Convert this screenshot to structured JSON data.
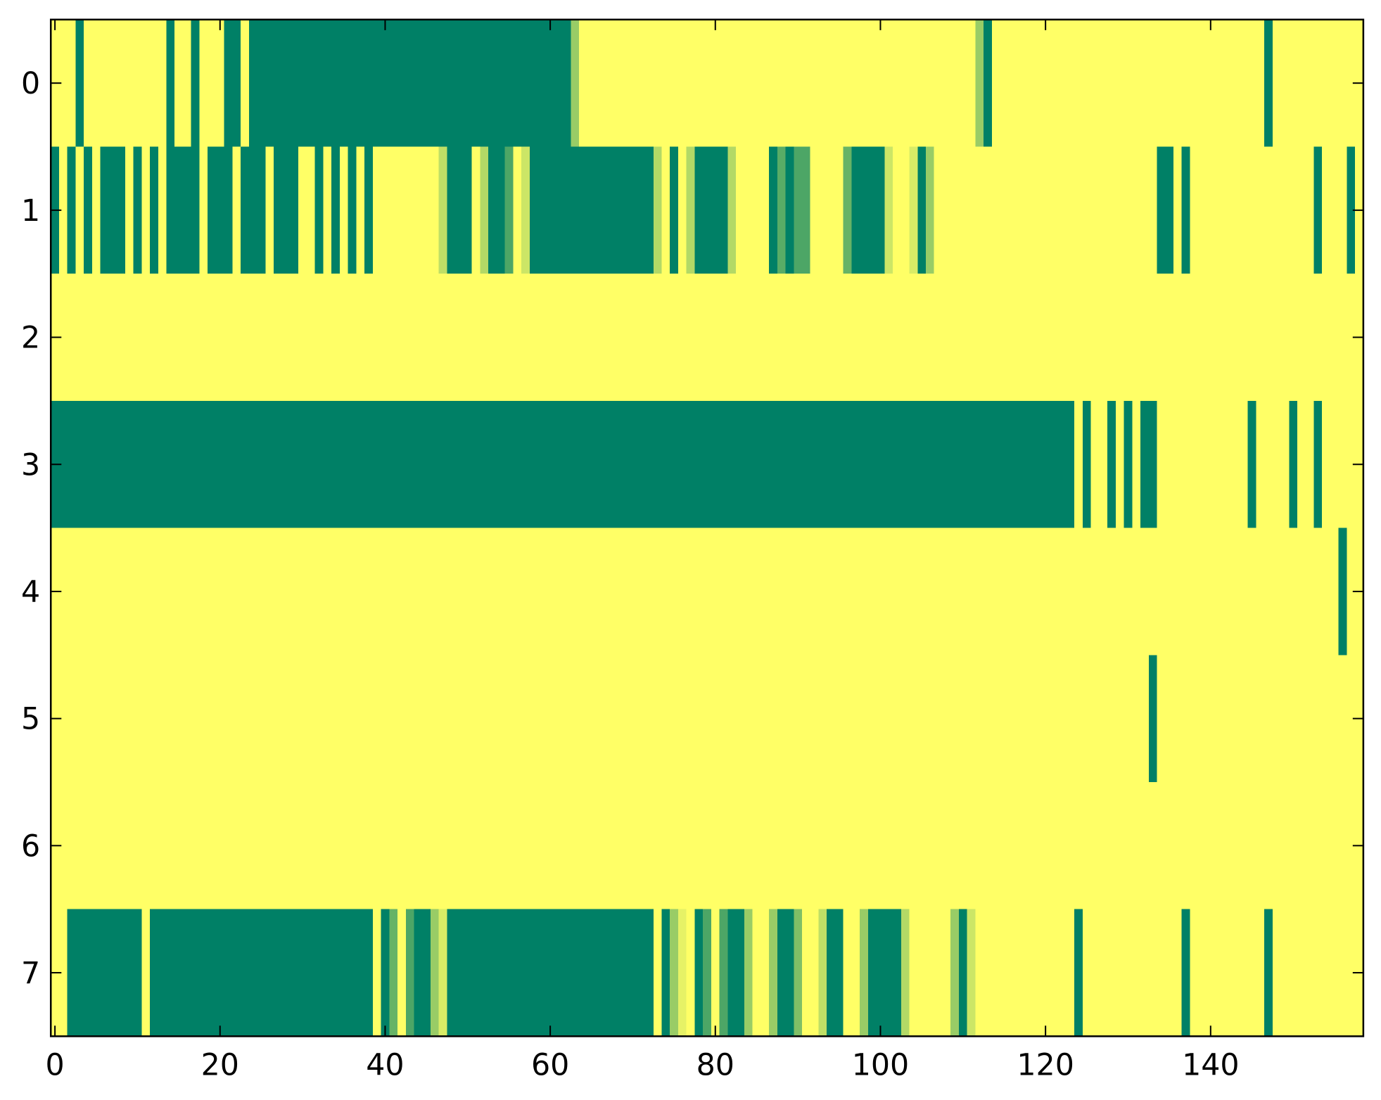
{
  "chart_data": {
    "type": "heatmap",
    "colormap": "summer",
    "xlim": [
      -0.5,
      158.5
    ],
    "ylim": [
      7.5,
      -0.5
    ],
    "xticks": [
      0,
      20,
      40,
      60,
      80,
      100,
      120,
      140
    ],
    "yticks": [
      0,
      1,
      2,
      3,
      4,
      5,
      6,
      7
    ],
    "values": [
      [
        1,
        1,
        1,
        0,
        1,
        1,
        1,
        1,
        1,
        1,
        1,
        1,
        1,
        1,
        0,
        1,
        1,
        0,
        1,
        1,
        1,
        0,
        0,
        1,
        0,
        0,
        0,
        0,
        0,
        0,
        0,
        0,
        0,
        0,
        0,
        0,
        0,
        0,
        0,
        0,
        0,
        0,
        0,
        0,
        0,
        0,
        0,
        0,
        0,
        0,
        0,
        0,
        0,
        0,
        0,
        0,
        0,
        0,
        0,
        0,
        0,
        0,
        0,
        0.6,
        1,
        1,
        1,
        1,
        1,
        1,
        1,
        1,
        1,
        1,
        1,
        1,
        1,
        1,
        1,
        1,
        1,
        1,
        1,
        1,
        1,
        1,
        1,
        1,
        1,
        1,
        1,
        1,
        1,
        1,
        1,
        1,
        1,
        1,
        1,
        1,
        1,
        1,
        1,
        1,
        1,
        1,
        1,
        1,
        1,
        1,
        1,
        1,
        0.6,
        0,
        1,
        1,
        1,
        1,
        1,
        1,
        1,
        1,
        1,
        1,
        1,
        1,
        1,
        1,
        1,
        1,
        1,
        1,
        1,
        1,
        1,
        1,
        1,
        1,
        1,
        1,
        1,
        1,
        1,
        1,
        1,
        1,
        1,
        0,
        1,
        1,
        1,
        1,
        1,
        1,
        1,
        1,
        1,
        1,
        1
      ],
      [
        0,
        1,
        0,
        1,
        0,
        1,
        0,
        0,
        0,
        1,
        0,
        1,
        0,
        1,
        0,
        0,
        0,
        0,
        1,
        0,
        0,
        0,
        1,
        0,
        0,
        0,
        1,
        0,
        0,
        0,
        1,
        1,
        0,
        1,
        0,
        1,
        0,
        1,
        0,
        1,
        1,
        1,
        1,
        1,
        1,
        1,
        1,
        0.75,
        0,
        0,
        0,
        1,
        0.7,
        0,
        0,
        0.3,
        1,
        0.8,
        0,
        0,
        0,
        0,
        0,
        0,
        0,
        0,
        0,
        0,
        0,
        0,
        0,
        0,
        0,
        0.7,
        1,
        0,
        1,
        0.7,
        0,
        0,
        0,
        0,
        0.7,
        1,
        1,
        1,
        1,
        0,
        0.35,
        0,
        0.3,
        0.3,
        1,
        1,
        1,
        1,
        0.4,
        0,
        0,
        0,
        0,
        0.8,
        1,
        1,
        0.85,
        0,
        0.6,
        1,
        1,
        1,
        1,
        1,
        1,
        1,
        1,
        1,
        1,
        1,
        1,
        1,
        1,
        1,
        1,
        1,
        1,
        1,
        1,
        1,
        1,
        1,
        1,
        1,
        1,
        1,
        0,
        0,
        1,
        0,
        1,
        1,
        1,
        1,
        1,
        1,
        1,
        1,
        1,
        1,
        1,
        1,
        1,
        1,
        1,
        0,
        1,
        1,
        1,
        0,
        1
      ],
      [
        1,
        1,
        1,
        1,
        1,
        1,
        1,
        1,
        1,
        1,
        1,
        1,
        1,
        1,
        1,
        1,
        1,
        1,
        1,
        1,
        1,
        1,
        1,
        1,
        1,
        1,
        1,
        1,
        1,
        1,
        1,
        1,
        1,
        1,
        1,
        1,
        1,
        1,
        1,
        1,
        1,
        1,
        1,
        1,
        1,
        1,
        1,
        1,
        1,
        1,
        1,
        1,
        1,
        1,
        1,
        1,
        1,
        1,
        1,
        1,
        1,
        1,
        1,
        1,
        1,
        1,
        1,
        1,
        1,
        1,
        1,
        1,
        1,
        1,
        1,
        1,
        1,
        1,
        1,
        1,
        1,
        1,
        1,
        1,
        1,
        1,
        1,
        1,
        1,
        1,
        1,
        1,
        1,
        1,
        1,
        1,
        1,
        1,
        1,
        1,
        1,
        1,
        1,
        1,
        1,
        1,
        1,
        1,
        1,
        1,
        1,
        1,
        1,
        1,
        1,
        1,
        1,
        1,
        1,
        1,
        1,
        1,
        1,
        1,
        1,
        1,
        1,
        1,
        1,
        1,
        1,
        1,
        1,
        1,
        1,
        1,
        1,
        1,
        1,
        1,
        1,
        1,
        1,
        1,
        1,
        1,
        1,
        1,
        1,
        1,
        1,
        1,
        1,
        1,
        1,
        1,
        1,
        1,
        1
      ],
      [
        0,
        0,
        0,
        0,
        0,
        0,
        0,
        0,
        0,
        0,
        0,
        0,
        0,
        0,
        0,
        0,
        0,
        0,
        0,
        0,
        0,
        0,
        0,
        0,
        0,
        0,
        0,
        0,
        0,
        0,
        0,
        0,
        0,
        0,
        0,
        0,
        0,
        0,
        0,
        0,
        0,
        0,
        0,
        0,
        0,
        0,
        0,
        0,
        0,
        0,
        0,
        0,
        0,
        0,
        0,
        0,
        0,
        0,
        0,
        0,
        0,
        0,
        0,
        0,
        0,
        0,
        0,
        0,
        0,
        0,
        0,
        0,
        0,
        0,
        0,
        0,
        0,
        0,
        0,
        0,
        0,
        0,
        0,
        0,
        0,
        0,
        0,
        0,
        0,
        0,
        0,
        0,
        0,
        0,
        0,
        0,
        0,
        0,
        0,
        0,
        0,
        0,
        0,
        0,
        0,
        0,
        0,
        0,
        0,
        0,
        0,
        0,
        0,
        0,
        0,
        0,
        0,
        0,
        0,
        0,
        0,
        0,
        0,
        0,
        1,
        0,
        1,
        1,
        0,
        1,
        0,
        1,
        0,
        0,
        1,
        1,
        1,
        1,
        1,
        1,
        1,
        1,
        1,
        1,
        1,
        0,
        1,
        1,
        1,
        1,
        0,
        1,
        1,
        0,
        1,
        1,
        1,
        1,
        1
      ],
      [
        1,
        1,
        1,
        1,
        1,
        1,
        1,
        1,
        1,
        1,
        1,
        1,
        1,
        1,
        1,
        1,
        1,
        1,
        1,
        1,
        1,
        1,
        1,
        1,
        1,
        1,
        1,
        1,
        1,
        1,
        1,
        1,
        1,
        1,
        1,
        1,
        1,
        1,
        1,
        1,
        1,
        1,
        1,
        1,
        1,
        1,
        1,
        1,
        1,
        1,
        1,
        1,
        1,
        1,
        1,
        1,
        1,
        1,
        1,
        1,
        1,
        1,
        1,
        1,
        1,
        1,
        1,
        1,
        1,
        1,
        1,
        1,
        1,
        1,
        1,
        1,
        1,
        1,
        1,
        1,
        1,
        1,
        1,
        1,
        1,
        1,
        1,
        1,
        1,
        1,
        1,
        1,
        1,
        1,
        1,
        1,
        1,
        1,
        1,
        1,
        1,
        1,
        1,
        1,
        1,
        1,
        1,
        1,
        1,
        1,
        1,
        1,
        1,
        1,
        1,
        1,
        1,
        1,
        1,
        1,
        1,
        1,
        1,
        1,
        1,
        1,
        1,
        1,
        1,
        1,
        1,
        1,
        1,
        1,
        1,
        1,
        1,
        1,
        1,
        1,
        1,
        1,
        1,
        1,
        1,
        1,
        1,
        1,
        1,
        1,
        1,
        1,
        1,
        1,
        1,
        1,
        0,
        1,
        1
      ],
      [
        1,
        1,
        1,
        1,
        1,
        1,
        1,
        1,
        1,
        1,
        1,
        1,
        1,
        1,
        1,
        1,
        1,
        1,
        1,
        1,
        1,
        1,
        1,
        1,
        1,
        1,
        1,
        1,
        1,
        1,
        1,
        1,
        1,
        1,
        1,
        1,
        1,
        1,
        1,
        1,
        1,
        1,
        1,
        1,
        1,
        1,
        1,
        1,
        1,
        1,
        1,
        1,
        1,
        1,
        1,
        1,
        1,
        1,
        1,
        1,
        1,
        1,
        1,
        1,
        1,
        1,
        1,
        1,
        1,
        1,
        1,
        1,
        1,
        1,
        1,
        1,
        1,
        1,
        1,
        1,
        1,
        1,
        1,
        1,
        1,
        1,
        1,
        1,
        1,
        1,
        1,
        1,
        1,
        1,
        1,
        1,
        1,
        1,
        1,
        1,
        1,
        1,
        1,
        1,
        1,
        1,
        1,
        1,
        1,
        1,
        1,
        1,
        1,
        1,
        1,
        1,
        1,
        1,
        1,
        1,
        1,
        1,
        1,
        1,
        1,
        1,
        1,
        1,
        1,
        1,
        1,
        1,
        1,
        0,
        1,
        1,
        1,
        1,
        1,
        1,
        1,
        1,
        1,
        1,
        1,
        1,
        1,
        1,
        1,
        1,
        1,
        1,
        1,
        1,
        1,
        1,
        1,
        1,
        1
      ],
      [
        1,
        1,
        1,
        1,
        1,
        1,
        1,
        1,
        1,
        1,
        1,
        1,
        1,
        1,
        1,
        1,
        1,
        1,
        1,
        1,
        1,
        1,
        1,
        1,
        1,
        1,
        1,
        1,
        1,
        1,
        1,
        1,
        1,
        1,
        1,
        1,
        1,
        1,
        1,
        1,
        1,
        1,
        1,
        1,
        1,
        1,
        1,
        1,
        1,
        1,
        1,
        1,
        1,
        1,
        1,
        1,
        1,
        1,
        1,
        1,
        1,
        1,
        1,
        1,
        1,
        1,
        1,
        1,
        1,
        1,
        1,
        1,
        1,
        1,
        1,
        1,
        1,
        1,
        1,
        1,
        1,
        1,
        1,
        1,
        1,
        1,
        1,
        1,
        1,
        1,
        1,
        1,
        1,
        1,
        1,
        1,
        1,
        1,
        1,
        1,
        1,
        1,
        1,
        1,
        1,
        1,
        1,
        1,
        1,
        1,
        1,
        1,
        1,
        1,
        1,
        1,
        1,
        1,
        1,
        1,
        1,
        1,
        1,
        1,
        1,
        1,
        1,
        1,
        1,
        1,
        1,
        1,
        1,
        1,
        1,
        1,
        1,
        1,
        1,
        1,
        1,
        1,
        1,
        1,
        1,
        1,
        1,
        1,
        1,
        1,
        1,
        1,
        1,
        1,
        1,
        1,
        1,
        1,
        1
      ],
      [
        1,
        1,
        0,
        0,
        0,
        0,
        0,
        0,
        0,
        0,
        0,
        1,
        0,
        0,
        0,
        0,
        0,
        0,
        0,
        0,
        0,
        0,
        0,
        0,
        0,
        0,
        0,
        0,
        0,
        0,
        0,
        0,
        0,
        0,
        0,
        0,
        0,
        0,
        0,
        1,
        0,
        0.4,
        1,
        0.3,
        0,
        0,
        0.6,
        0.85,
        0,
        0,
        0,
        0,
        0,
        0,
        0,
        0,
        0,
        0,
        0,
        0,
        0,
        0,
        0,
        0,
        0,
        0,
        0,
        0,
        0,
        0,
        0,
        0,
        0,
        1,
        0,
        0.6,
        0.9,
        1,
        0,
        0.3,
        1,
        0.3,
        0,
        0,
        0.6,
        1,
        1,
        0.6,
        0,
        0,
        0.5,
        1,
        1,
        0.75,
        0,
        0,
        1,
        1,
        0.6,
        0,
        0,
        0,
        0,
        0.7,
        1,
        1,
        1,
        1,
        1,
        0.6,
        0,
        0.8,
        1,
        1,
        1,
        1,
        1,
        1,
        1,
        1,
        1,
        1,
        1,
        1,
        0,
        1,
        1,
        1,
        1,
        1,
        1,
        1,
        1,
        1,
        1,
        1,
        1,
        0,
        1,
        1,
        1,
        1,
        1,
        1,
        1,
        1,
        1,
        0,
        1,
        1,
        1,
        1,
        1,
        1,
        1,
        1,
        1,
        1,
        1
      ]
    ]
  }
}
